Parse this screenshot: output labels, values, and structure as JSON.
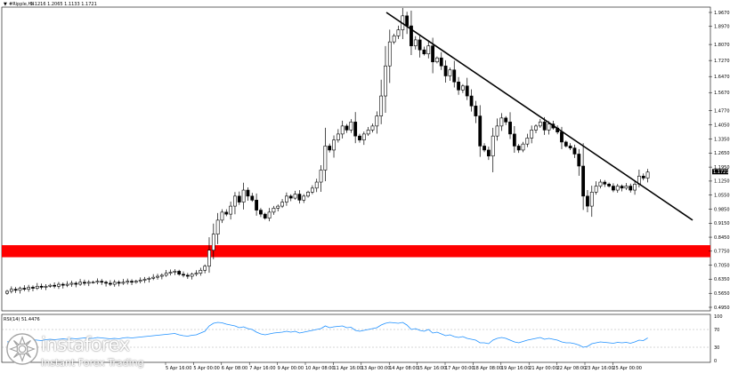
{
  "header": {
    "symbol": "#Ripple,H4",
    "ohlc": "1.1216 1.2065 1.1133 1.1721"
  },
  "colors": {
    "bull": "#ffffff",
    "bear": "#000000",
    "zone": "#ff0000",
    "rsi": "#1e90ff",
    "trendline": "#000000"
  },
  "chart_data": [
    {
      "type": "candlestick",
      "title": "#Ripple,H4",
      "price_axis": [
        "1.9670",
        "1.8970",
        "1.8070",
        "1.7270",
        "1.6470",
        "1.5670",
        "1.4770",
        "1.4050",
        "1.3350",
        "1.2650",
        "1.1950",
        "1.1250",
        "1.0550",
        "0.9850",
        "0.9150",
        "0.8450",
        "0.7750",
        "0.7050",
        "0.6350",
        "0.5650",
        "0.4950"
      ],
      "last_price": "1.1721",
      "ylim": [
        0.495,
        1.967
      ],
      "support_zone": {
        "low": 0.745,
        "high": 0.805
      },
      "trendline": {
        "start": 1.967,
        "end": 0.93
      },
      "time_axis": [
        "5 Apr 16:00",
        "5 Apr 00:00",
        "6 Apr 08:00",
        "7 Apr 16:00",
        "9 Apr 00:00",
        "10 Apr 08:00",
        "11 Apr 16:00",
        "13 Apr 00:00",
        "14 Apr 08:00",
        "15 Apr 16:00",
        "17 Apr 00:00",
        "18 Apr 08:00",
        "19 Apr 16:00",
        "21 Apr 00:00",
        "22 Apr 08:00",
        "23 Apr 16:00",
        "25 Apr 00:00"
      ],
      "candles_count": 150,
      "closes": [
        0.575,
        0.585,
        0.58,
        0.59,
        0.585,
        0.595,
        0.59,
        0.6,
        0.595,
        0.6,
        0.605,
        0.6,
        0.61,
        0.605,
        0.61,
        0.615,
        0.61,
        0.62,
        0.615,
        0.62,
        0.62,
        0.625,
        0.62,
        0.615,
        0.61,
        0.62,
        0.615,
        0.62,
        0.625,
        0.62,
        0.625,
        0.63,
        0.635,
        0.64,
        0.645,
        0.65,
        0.655,
        0.665,
        0.67,
        0.675,
        0.66,
        0.655,
        0.65,
        0.66,
        0.665,
        0.68,
        0.7,
        0.78,
        0.86,
        0.93,
        0.97,
        0.96,
        1.0,
        1.05,
        1.02,
        1.08,
        1.05,
        1.03,
        0.98,
        0.96,
        0.94,
        0.97,
        0.99,
        1.0,
        1.02,
        1.05,
        1.04,
        1.06,
        1.03,
        1.05,
        1.07,
        1.09,
        1.12,
        1.18,
        1.3,
        1.28,
        1.33,
        1.36,
        1.4,
        1.38,
        1.42,
        1.35,
        1.33,
        1.36,
        1.38,
        1.4,
        1.45,
        1.55,
        1.7,
        1.82,
        1.85,
        1.88,
        1.95,
        1.9,
        1.8,
        1.83,
        1.78,
        1.76,
        1.8,
        1.72,
        1.74,
        1.7,
        1.65,
        1.68,
        1.62,
        1.58,
        1.6,
        1.55,
        1.5,
        1.45,
        1.3,
        1.28,
        1.25,
        1.35,
        1.4,
        1.44,
        1.42,
        1.36,
        1.3,
        1.28,
        1.31,
        1.34,
        1.38,
        1.4,
        1.42,
        1.38,
        1.41,
        1.39,
        1.37,
        1.32,
        1.3,
        1.29,
        1.26,
        1.2,
        1.05,
        1.0,
        1.07,
        1.1,
        1.12,
        1.11,
        1.1,
        1.08,
        1.1,
        1.09,
        1.1,
        1.08,
        1.11,
        1.15,
        1.14,
        1.17
      ],
      "rsi": {
        "label": "RSI(14) 51.4476",
        "levels": [
          "100",
          "70",
          "30",
          "0"
        ],
        "values": [
          42,
          44,
          45,
          44,
          46,
          45,
          47,
          46,
          45,
          47,
          48,
          47,
          48,
          49,
          48,
          50,
          49,
          50,
          51,
          50,
          50,
          52,
          51,
          50,
          49,
          50,
          49,
          51,
          52,
          51,
          52,
          53,
          54,
          55,
          56,
          57,
          58,
          59,
          60,
          61,
          58,
          56,
          55,
          57,
          58,
          62,
          66,
          78,
          84,
          86,
          85,
          82,
          80,
          78,
          74,
          76,
          72,
          70,
          64,
          60,
          58,
          60,
          62,
          63,
          64,
          66,
          64,
          66,
          62,
          64,
          66,
          68,
          70,
          72,
          78,
          74,
          76,
          77,
          78,
          74,
          75,
          68,
          66,
          68,
          70,
          72,
          74,
          80,
          84,
          86,
          85,
          84,
          86,
          80,
          70,
          72,
          68,
          66,
          70,
          62,
          64,
          60,
          56,
          58,
          54,
          52,
          54,
          50,
          48,
          46,
          40,
          40,
          38,
          46,
          50,
          52,
          50,
          46,
          42,
          40,
          43,
          46,
          48,
          50,
          52,
          48,
          50,
          48,
          46,
          42,
          40,
          40,
          38,
          35,
          30,
          32,
          38,
          40,
          42,
          41,
          40,
          39,
          41,
          40,
          41,
          39,
          42,
          46,
          45,
          51
        ]
      }
    }
  ],
  "watermark": {
    "brand": "instaforex",
    "tagline": "Instant Forex Trading"
  }
}
